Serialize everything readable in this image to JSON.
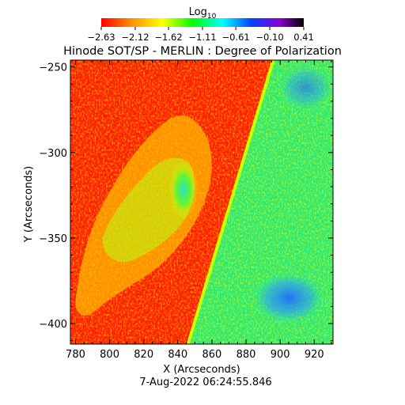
{
  "chart_data": {
    "type": "heatmap",
    "title": "Hinode SOT/SP - MERLIN : Degree of Polarization",
    "subtitle": "7-Aug-2022 06:24:55.846",
    "xlabel": "X (Arcseconds)",
    "ylabel": "Y (Arcseconds)",
    "xlim": [
      777,
      931
    ],
    "ylim": [
      -412,
      -246
    ],
    "x_ticks": [
      780,
      800,
      820,
      840,
      860,
      880,
      900,
      920
    ],
    "x_tick_labels": [
      "780",
      "800",
      "820",
      "840",
      "860",
      "880",
      "900",
      "920"
    ],
    "y_ticks": [
      -400,
      -350,
      -300,
      -250
    ],
    "y_tick_labels": [
      "−400",
      "−350",
      "−300",
      "−250"
    ],
    "colorbar": {
      "label_base": "Log",
      "label_sub": "10",
      "range": [
        -2.63,
        0.41
      ],
      "ticks": [
        -2.63,
        -2.12,
        -1.62,
        -1.11,
        -0.61,
        -0.1,
        0.41
      ],
      "tick_labels": [
        "−2.63",
        "−2.12",
        "−1.62",
        "−1.11",
        "−0.61",
        "−0.10",
        "0.41"
      ],
      "colors": [
        "#ff0000",
        "#ff9900",
        "#ffff00",
        "#00ff00",
        "#00ffff",
        "#0044ff",
        "#8a00d4",
        "#000000"
      ]
    },
    "regions": {
      "limb_line": {
        "x_bottom": 846,
        "y_bottom": -412,
        "x_top": 896,
        "y_top": -246,
        "value_log10": -1.0
      },
      "disk_value_log10": -2.6,
      "offlimb_value_log10": -1.2,
      "active_region_center": [
        840,
        -325
      ],
      "blue_patches": [
        {
          "x": 905,
          "y": -385,
          "value_log10": -0.75
        },
        {
          "x": 915,
          "y": -262,
          "value_log10": -0.85
        }
      ]
    }
  }
}
